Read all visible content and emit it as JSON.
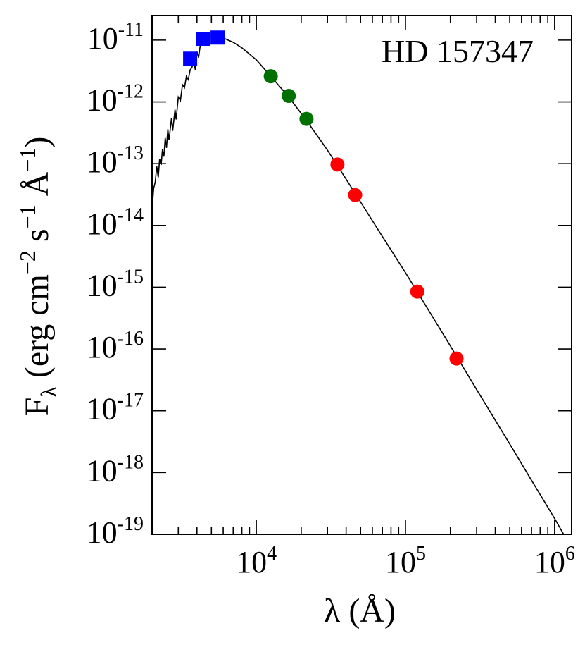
{
  "chart_data": {
    "type": "scatter",
    "title": "",
    "annotation": "HD 157347",
    "xlabel": "λ (Å)",
    "ylabel": {
      "symbol": "F",
      "subscript": "λ",
      "units": "(erg cm",
      "exp1": "−2",
      "mid": " s",
      "exp2": "−1",
      "angstrom": " Å",
      "exp3": "−1",
      "close": ")"
    },
    "xscale": "log",
    "yscale": "log",
    "xlim": [
      2000,
      1300000
    ],
    "ylim": [
      1e-19,
      2.5e-11
    ],
    "grid": false,
    "legend": "none",
    "x_ticks": [
      {
        "value": 10000,
        "base": "10",
        "exp": "4"
      },
      {
        "value": 100000,
        "base": "10",
        "exp": "5"
      },
      {
        "value": 1000000,
        "base": "10",
        "exp": "6"
      }
    ],
    "y_ticks": [
      {
        "value": 1e-11,
        "base": "10",
        "exp": "-11"
      },
      {
        "value": 1e-12,
        "base": "10",
        "exp": "-12"
      },
      {
        "value": 1e-13,
        "base": "10",
        "exp": "-13"
      },
      {
        "value": 1e-14,
        "base": "10",
        "exp": "-14"
      },
      {
        "value": 1e-15,
        "base": "10",
        "exp": "-15"
      },
      {
        "value": 1e-16,
        "base": "10",
        "exp": "-16"
      },
      {
        "value": 1e-17,
        "base": "10",
        "exp": "-17"
      },
      {
        "value": 1e-18,
        "base": "10",
        "exp": "-18"
      },
      {
        "value": 1e-19,
        "base": "10",
        "exp": "-19"
      }
    ],
    "series": [
      {
        "marker": "square",
        "color": "#0000ff",
        "points": [
          [
            3600,
            5e-12
          ],
          [
            4400,
            1.05e-11
          ],
          [
            5500,
            1.1e-11
          ]
        ]
      },
      {
        "marker": "circle",
        "color": "#007000",
        "points": [
          [
            12500,
            2.6e-12
          ],
          [
            16500,
            1.25e-12
          ],
          [
            21700,
            5.3e-13
          ]
        ]
      },
      {
        "marker": "circle",
        "color": "#ff0000",
        "points": [
          [
            35000,
            9.7e-14
          ],
          [
            46000,
            3.1e-14
          ],
          [
            120000,
            8.5e-16
          ],
          [
            220000,
            7e-17
          ]
        ]
      }
    ],
    "model_spectrum": [
      [
        2000,
        1.8e-14
      ],
      [
        2050,
        4e-14
      ],
      [
        2100,
        5e-14
      ],
      [
        2150,
        9e-14
      ],
      [
        2200,
        6e-14
      ],
      [
        2250,
        1.2e-13
      ],
      [
        2300,
        9.5e-14
      ],
      [
        2350,
        1.7e-13
      ],
      [
        2400,
        1.3e-13
      ],
      [
        2450,
        2.6e-13
      ],
      [
        2500,
        1.8e-13
      ],
      [
        2550,
        3.6e-13
      ],
      [
        2600,
        2.4e-13
      ],
      [
        2700,
        5.5e-13
      ],
      [
        2750,
        3.4e-13
      ],
      [
        2850,
        7.5e-13
      ],
      [
        2900,
        5.2e-13
      ],
      [
        3000,
        1.2e-12
      ],
      [
        3100,
        1.05e-12
      ],
      [
        3200,
        1.9e-12
      ],
      [
        3300,
        1.7e-12
      ],
      [
        3400,
        2.6e-12
      ],
      [
        3500,
        2.3e-12
      ],
      [
        3600,
        3.3e-12
      ],
      [
        3700,
        3.6e-12
      ],
      [
        3800,
        4.5e-12
      ],
      [
        3900,
        3.3e-12
      ],
      [
        4000,
        6.5e-12
      ],
      [
        4100,
        5.2e-12
      ],
      [
        4200,
        8e-12
      ],
      [
        4350,
        9e-12
      ],
      [
        4500,
        1.03e-11
      ],
      [
        4700,
        1.1e-11
      ],
      [
        5000,
        1.15e-11
      ],
      [
        5500,
        1.13e-11
      ],
      [
        6000,
        1.08e-11
      ],
      [
        7000,
        9.2e-12
      ],
      [
        8000,
        7.5e-12
      ],
      [
        10000,
        4.8e-12
      ],
      [
        12500,
        2.6e-12
      ],
      [
        16500,
        1.2e-12
      ],
      [
        21700,
        5e-13
      ],
      [
        30000,
        1.65e-13
      ],
      [
        40000,
        5.6e-14
      ],
      [
        50000,
        2.4e-14
      ],
      [
        70000,
        6.6e-15
      ],
      [
        100000,
        1.72e-15
      ],
      [
        150000,
        3.5e-16
      ],
      [
        200000,
        1.12e-16
      ],
      [
        300000,
        2.2e-17
      ],
      [
        500000,
        2.9e-18
      ],
      [
        700000,
        7.5e-19
      ],
      [
        1000000,
        1.8e-19
      ],
      [
        1150000,
        1e-19
      ]
    ]
  }
}
